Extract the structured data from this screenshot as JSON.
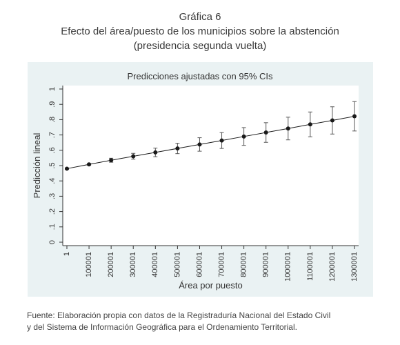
{
  "figure": {
    "number": "Gráfica 6",
    "title": "Efecto del área/puesto de los municipios sobre la abstención",
    "subtitle": "(presidencia segunda vuelta)",
    "source_line1": "Fuente: Elaboración propia con datos de la Registraduría Nacional del Estado Civil",
    "source_line2": "y del Sistema de Información Geográfica para el Ordenamiento Territorial."
  },
  "chart_data": {
    "type": "line",
    "title": "Predicciones ajustadas con 95% CIs",
    "xlabel": "Área por puesto",
    "ylabel": "Predicción lineal",
    "x": [
      1,
      100001,
      200001,
      300001,
      400001,
      500001,
      600001,
      700001,
      800001,
      900001,
      1000001,
      1100001,
      1200001,
      1300001
    ],
    "x_tick_labels": [
      "1",
      "100001",
      "200001",
      "300001",
      "400001",
      "500001",
      "600001",
      "700001",
      "800001",
      "900001",
      "1000001",
      "1100001",
      "1200001",
      "1300001"
    ],
    "series": [
      {
        "values": [
          0.48,
          0.508,
          0.535,
          0.561,
          0.586,
          0.612,
          0.638,
          0.664,
          0.69,
          0.716,
          0.742,
          0.769,
          0.795,
          0.822
        ],
        "ci_low": [
          0.476,
          0.503,
          0.522,
          0.542,
          0.558,
          0.578,
          0.594,
          0.612,
          0.632,
          0.652,
          0.668,
          0.688,
          0.706,
          0.726
        ],
        "ci_high": [
          0.484,
          0.513,
          0.548,
          0.58,
          0.614,
          0.646,
          0.682,
          0.716,
          0.748,
          0.78,
          0.816,
          0.85,
          0.884,
          0.918
        ]
      }
    ],
    "ylim": [
      0,
      1
    ],
    "y_ticks": [
      0,
      0.1,
      0.2,
      0.3,
      0.4,
      0.5,
      0.6,
      0.7,
      0.8,
      0.9,
      1
    ],
    "y_tick_labels": [
      "0",
      ".1",
      ".2",
      ".3",
      ".4",
      ".5",
      ".6",
      ".7",
      ".8",
      ".9",
      "1"
    ],
    "grid": false,
    "colors": {
      "line": "#1a1a1a",
      "outer_background": "#eaf2f3",
      "plot_background": "#ffffff",
      "error_bar": "#555555"
    }
  }
}
